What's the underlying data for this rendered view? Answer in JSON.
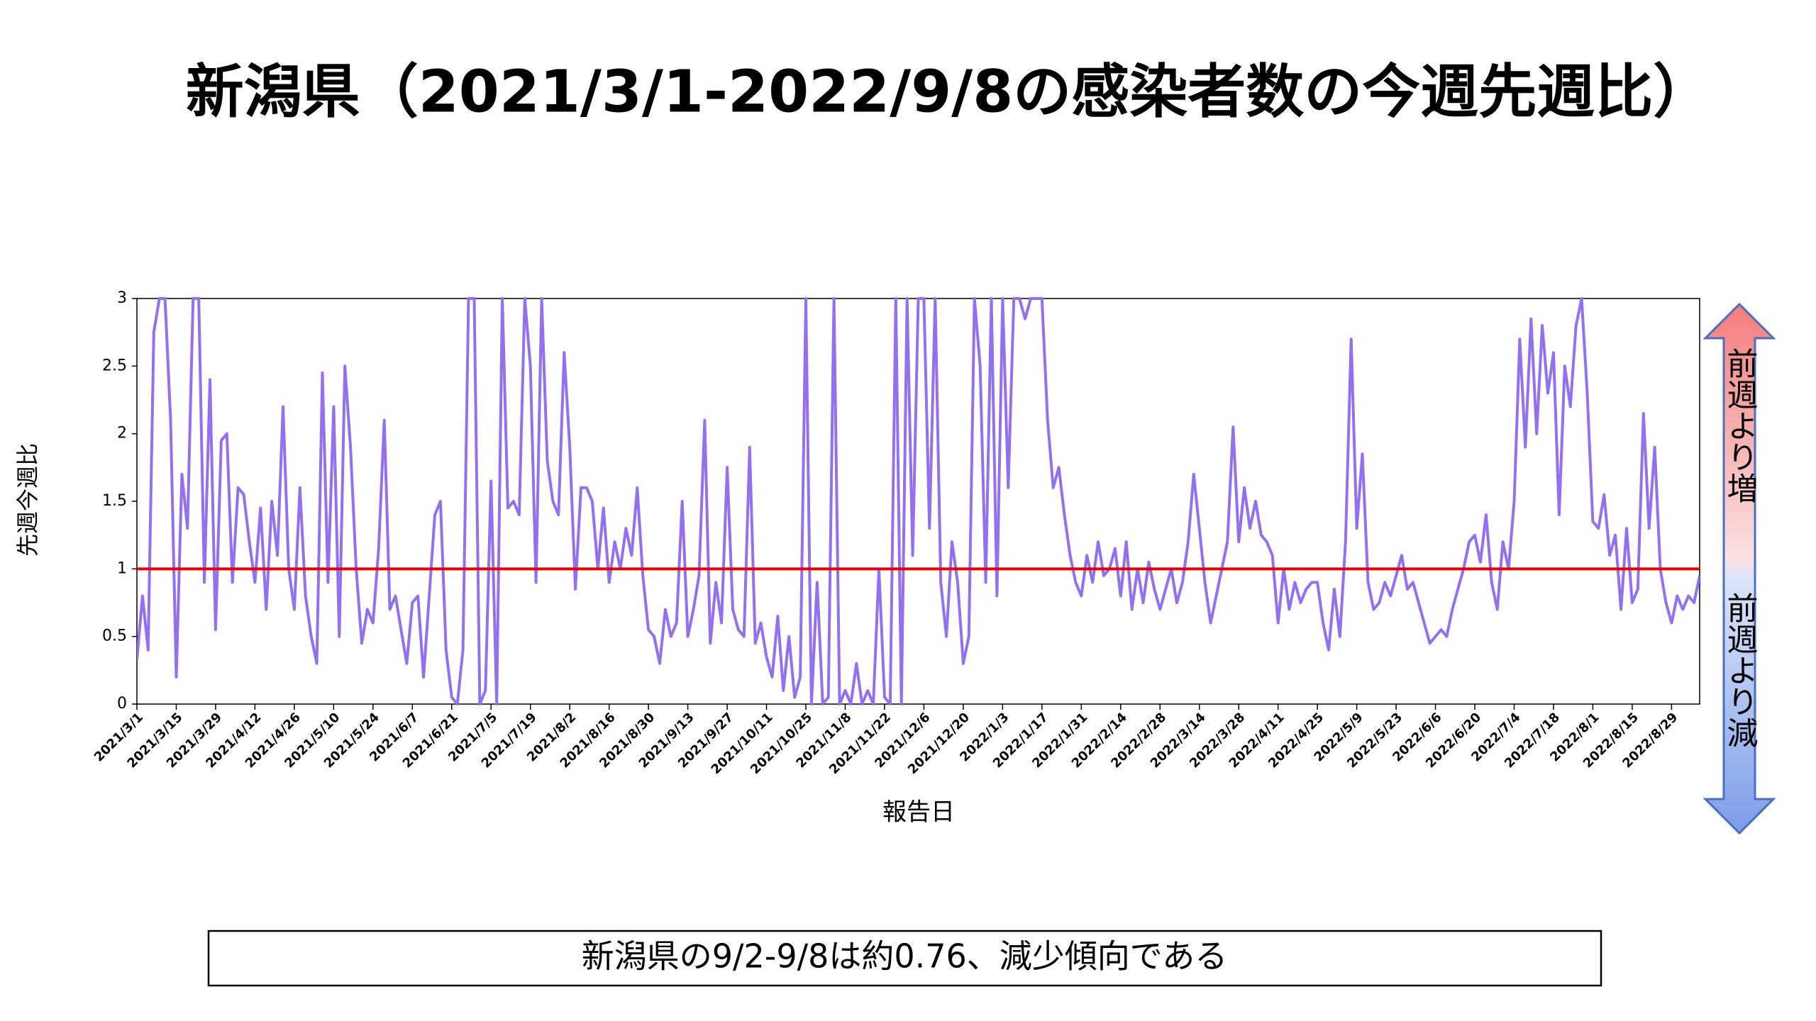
{
  "chart_data": {
    "type": "line",
    "title": "新潟県（2021/3/1-2022/9/8の感染者数の今週先週比）",
    "y_label": "先週今週比",
    "x_label": "報告日",
    "annotation": "新潟県の9/2-9/8は約0.76、減少傾向である",
    "arrow_up_label": "前週より増",
    "arrow_down_label": "前週より減",
    "ylim": [
      0,
      3
    ],
    "yticks": [
      0,
      0.5,
      1,
      1.5,
      2,
      2.5,
      3
    ],
    "reference_line": {
      "value": 1,
      "color": "#e60000"
    },
    "categories": [
      "2021/3/1",
      null,
      null,
      null,
      null,
      null,
      null,
      "2021/3/15",
      null,
      null,
      null,
      null,
      null,
      null,
      "2021/3/29",
      null,
      null,
      null,
      null,
      null,
      null,
      "2021/4/12",
      null,
      null,
      null,
      null,
      null,
      null,
      "2021/4/26",
      null,
      null,
      null,
      null,
      null,
      null,
      "2021/5/10",
      null,
      null,
      null,
      null,
      null,
      null,
      "2021/5/24",
      null,
      null,
      null,
      null,
      null,
      null,
      "2021/6/7",
      null,
      null,
      null,
      null,
      null,
      null,
      "2021/6/21",
      null,
      null,
      null,
      null,
      null,
      null,
      "2021/7/5",
      null,
      null,
      null,
      null,
      null,
      null,
      "2021/7/19",
      null,
      null,
      null,
      null,
      null,
      null,
      "2021/8/2",
      null,
      null,
      null,
      null,
      null,
      null,
      "2021/8/16",
      null,
      null,
      null,
      null,
      null,
      null,
      "2021/8/30",
      null,
      null,
      null,
      null,
      null,
      null,
      "2021/9/13",
      null,
      null,
      null,
      null,
      null,
      null,
      "2021/9/27",
      null,
      null,
      null,
      null,
      null,
      null,
      "2021/10/11",
      null,
      null,
      null,
      null,
      null,
      null,
      "2021/10/25",
      null,
      null,
      null,
      null,
      null,
      null,
      "2021/11/8",
      null,
      null,
      null,
      null,
      null,
      null,
      "2021/11/22",
      null,
      null,
      null,
      null,
      null,
      null,
      "2021/12/6",
      null,
      null,
      null,
      null,
      null,
      null,
      "2021/12/20",
      null,
      null,
      null,
      null,
      null,
      null,
      "2022/1/3",
      null,
      null,
      null,
      null,
      null,
      null,
      "2022/1/17",
      null,
      null,
      null,
      null,
      null,
      null,
      "2022/1/31",
      null,
      null,
      null,
      null,
      null,
      null,
      "2022/2/14",
      null,
      null,
      null,
      null,
      null,
      null,
      "2022/2/28",
      null,
      null,
      null,
      null,
      null,
      null,
      "2022/3/14",
      null,
      null,
      null,
      null,
      null,
      null,
      "2022/3/28",
      null,
      null,
      null,
      null,
      null,
      null,
      "2022/4/11",
      null,
      null,
      null,
      null,
      null,
      null,
      "2022/4/25",
      null,
      null,
      null,
      null,
      null,
      null,
      "2022/5/9",
      null,
      null,
      null,
      null,
      null,
      null,
      "2022/5/23",
      null,
      null,
      null,
      null,
      null,
      null,
      "2022/6/6",
      null,
      null,
      null,
      null,
      null,
      null,
      "2022/6/20",
      null,
      null,
      null,
      null,
      null,
      null,
      "2022/7/4",
      null,
      null,
      null,
      null,
      null,
      null,
      "2022/7/18",
      null,
      null,
      null,
      null,
      null,
      null,
      "2022/8/1",
      null,
      null,
      null,
      null,
      null,
      null,
      "2022/8/15",
      null,
      null,
      null,
      null,
      null,
      null,
      "2022/8/29",
      null,
      null,
      null,
      null,
      null
    ],
    "series": [
      {
        "color": "#9370f0",
        "values": [
          0.33,
          0.8,
          0.4,
          2.75,
          3,
          3,
          2.1,
          0.2,
          1.7,
          1.3,
          3,
          3,
          0.9,
          2.4,
          0.55,
          1.95,
          2.0,
          0.9,
          1.6,
          1.55,
          1.2,
          0.9,
          1.45,
          0.7,
          1.5,
          1.1,
          2.2,
          1.0,
          0.7,
          1.6,
          0.8,
          0.5,
          0.3,
          2.45,
          0.9,
          2.2,
          0.5,
          2.5,
          1.9,
          1.0,
          0.45,
          0.7,
          0.6,
          1.15,
          2.1,
          0.7,
          0.8,
          0.55,
          0.3,
          0.75,
          0.8,
          0.2,
          0.8,
          1.4,
          1.5,
          0.4,
          0.05,
          0,
          0.4,
          3,
          3,
          0,
          0.1,
          1.65,
          0,
          3,
          1.45,
          1.5,
          1.4,
          3,
          2.5,
          0.9,
          3,
          1.8,
          1.5,
          1.4,
          2.6,
          1.9,
          0.85,
          1.6,
          1.6,
          1.5,
          1.0,
          1.45,
          0.9,
          1.2,
          1.0,
          1.3,
          1.1,
          1.6,
          0.95,
          0.55,
          0.5,
          0.3,
          0.7,
          0.5,
          0.6,
          1.5,
          0.5,
          0.7,
          0.95,
          2.1,
          0.45,
          0.9,
          0.6,
          1.75,
          0.7,
          0.55,
          0.5,
          1.9,
          0.45,
          0.6,
          0.35,
          0.2,
          0.65,
          0.1,
          0.5,
          0.05,
          0.2,
          3,
          0,
          0.9,
          0,
          0.05,
          3,
          0,
          0.1,
          0,
          0.3,
          0,
          0.1,
          0,
          1.0,
          0.05,
          0,
          3,
          0,
          3,
          1.1,
          3,
          3,
          1.3,
          3,
          0.9,
          0.5,
          1.2,
          0.9,
          0.3,
          0.5,
          3,
          2.5,
          0.9,
          3,
          0.8,
          3,
          1.6,
          3,
          3,
          2.85,
          3,
          3,
          3,
          2.1,
          1.6,
          1.75,
          1.4,
          1.1,
          0.9,
          0.8,
          1.1,
          0.9,
          1.2,
          0.95,
          1.0,
          1.15,
          0.8,
          1.2,
          0.7,
          1.0,
          0.75,
          1.05,
          0.85,
          0.7,
          0.85,
          1.0,
          0.75,
          0.9,
          1.2,
          1.7,
          1.3,
          0.9,
          0.6,
          0.8,
          1.0,
          1.2,
          2.05,
          1.2,
          1.6,
          1.3,
          1.5,
          1.25,
          1.2,
          1.1,
          0.6,
          1.0,
          0.7,
          0.9,
          0.75,
          0.85,
          0.9,
          0.9,
          0.6,
          0.4,
          0.85,
          0.5,
          1.2,
          2.7,
          1.3,
          1.85,
          0.9,
          0.7,
          0.75,
          0.9,
          0.8,
          0.95,
          1.1,
          0.85,
          0.9,
          0.75,
          0.6,
          0.45,
          0.5,
          0.55,
          0.5,
          0.7,
          0.85,
          1.0,
          1.2,
          1.25,
          1.05,
          1.4,
          0.9,
          0.7,
          1.2,
          1.0,
          1.5,
          2.7,
          1.9,
          2.85,
          2.0,
          2.8,
          2.3,
          2.6,
          1.4,
          2.5,
          2.2,
          2.8,
          3,
          2.3,
          1.35,
          1.3,
          1.55,
          1.1,
          1.25,
          0.7,
          1.3,
          0.75,
          0.85,
          2.15,
          1.3,
          1.9,
          1.0,
          0.75,
          0.6,
          0.8,
          0.7,
          0.8,
          0.75,
          0.95
        ]
      }
    ]
  }
}
